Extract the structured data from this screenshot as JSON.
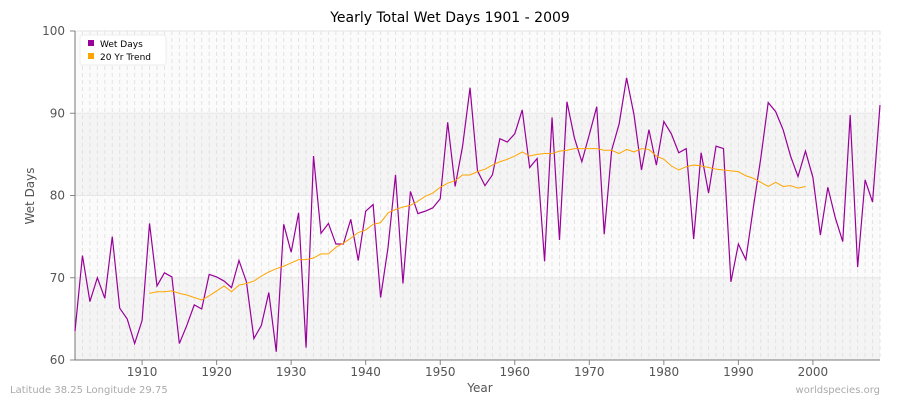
{
  "chart_data": {
    "type": "line",
    "title": "Yearly Total Wet Days 1901 - 2009",
    "xlabel": "Year",
    "ylabel": "Wet Days",
    "xlim": [
      1901,
      2009
    ],
    "ylim": [
      60,
      100
    ],
    "xticks": [
      1910,
      1920,
      1930,
      1940,
      1950,
      1960,
      1970,
      1980,
      1990,
      2000
    ],
    "yticks": [
      60,
      70,
      80,
      90,
      100
    ],
    "grid": true,
    "legend_position": "top-left",
    "series": [
      {
        "name": "Wet Days",
        "color": "#990099",
        "x_start": 1901,
        "values": [
          63.5,
          72.7,
          67.1,
          70,
          67.5,
          75,
          66.3,
          65,
          62,
          64.8,
          76.6,
          69,
          70.6,
          70.1,
          62,
          64.2,
          66.7,
          66.2,
          70.4,
          70.1,
          69.6,
          68.8,
          72.1,
          69.5,
          62.6,
          64.2,
          68.2,
          61,
          76.5,
          73.1,
          77.9,
          61.5,
          84.8,
          75.4,
          76.6,
          74.1,
          74.1,
          77.1,
          72.1,
          78.1,
          78.9,
          67.6,
          73.7,
          82.5,
          69.3,
          80.5,
          77.8,
          78.1,
          78.5,
          79.6,
          88.9,
          81.1,
          86,
          93.1,
          83,
          81.2,
          82.5,
          86.9,
          86.5,
          87.5,
          90.4,
          83.4,
          84.5,
          72,
          89.5,
          74.6,
          91.4,
          87,
          84.1,
          87.4,
          90.8,
          75.3,
          85.5,
          88.7,
          94.3,
          89.8,
          83.1,
          88,
          83.7,
          89,
          87.5,
          85.2,
          85.7,
          74.7,
          85.2,
          80.3,
          86,
          85.7,
          69.5,
          74.1,
          72.2,
          78.5,
          84.5,
          91.3,
          90.2,
          88,
          84.8,
          82.3,
          85.4,
          82.2,
          75.2,
          81,
          77.3,
          74.4,
          89.8,
          71.3,
          81.9,
          79.2,
          91
        ]
      },
      {
        "name": "20 Yr Trend",
        "color": "#ffa500",
        "x_start": 1911,
        "values": [
          68.1,
          68.3,
          68.3,
          68.4,
          68.1,
          67.9,
          67.6,
          67.3,
          67.8,
          68.4,
          69,
          68.3,
          69.1,
          69.3,
          69.6,
          70.2,
          70.7,
          71.1,
          71.4,
          71.8,
          72.2,
          72.2,
          72.4,
          72.9,
          72.9,
          73.7,
          74.2,
          74.8,
          75.5,
          75.8,
          76.5,
          76.7,
          77.9,
          78.3,
          78.6,
          78.8,
          79.3,
          79.9,
          80.3,
          81,
          81.5,
          81.8,
          82.5,
          82.5,
          82.9,
          83.2,
          83.7,
          84.1,
          84.4,
          84.8,
          85.3,
          84.8,
          85,
          85.1,
          85.1,
          85.4,
          85.5,
          85.7,
          85.7,
          85.7,
          85.7,
          85.5,
          85.5,
          85.1,
          85.6,
          85.3,
          85.7,
          85.6,
          84.8,
          84.4,
          83.6,
          83.1,
          83.5,
          83.7,
          83.6,
          83.4,
          83.2,
          83.1,
          83,
          82.9,
          82.4,
          82.1,
          81.6,
          81.1,
          81.6,
          81.1,
          81.2,
          80.9,
          81.1
        ]
      }
    ]
  },
  "footer": {
    "location": "Latitude 38.25 Longitude 29.75",
    "site": "worldspecies.org"
  }
}
